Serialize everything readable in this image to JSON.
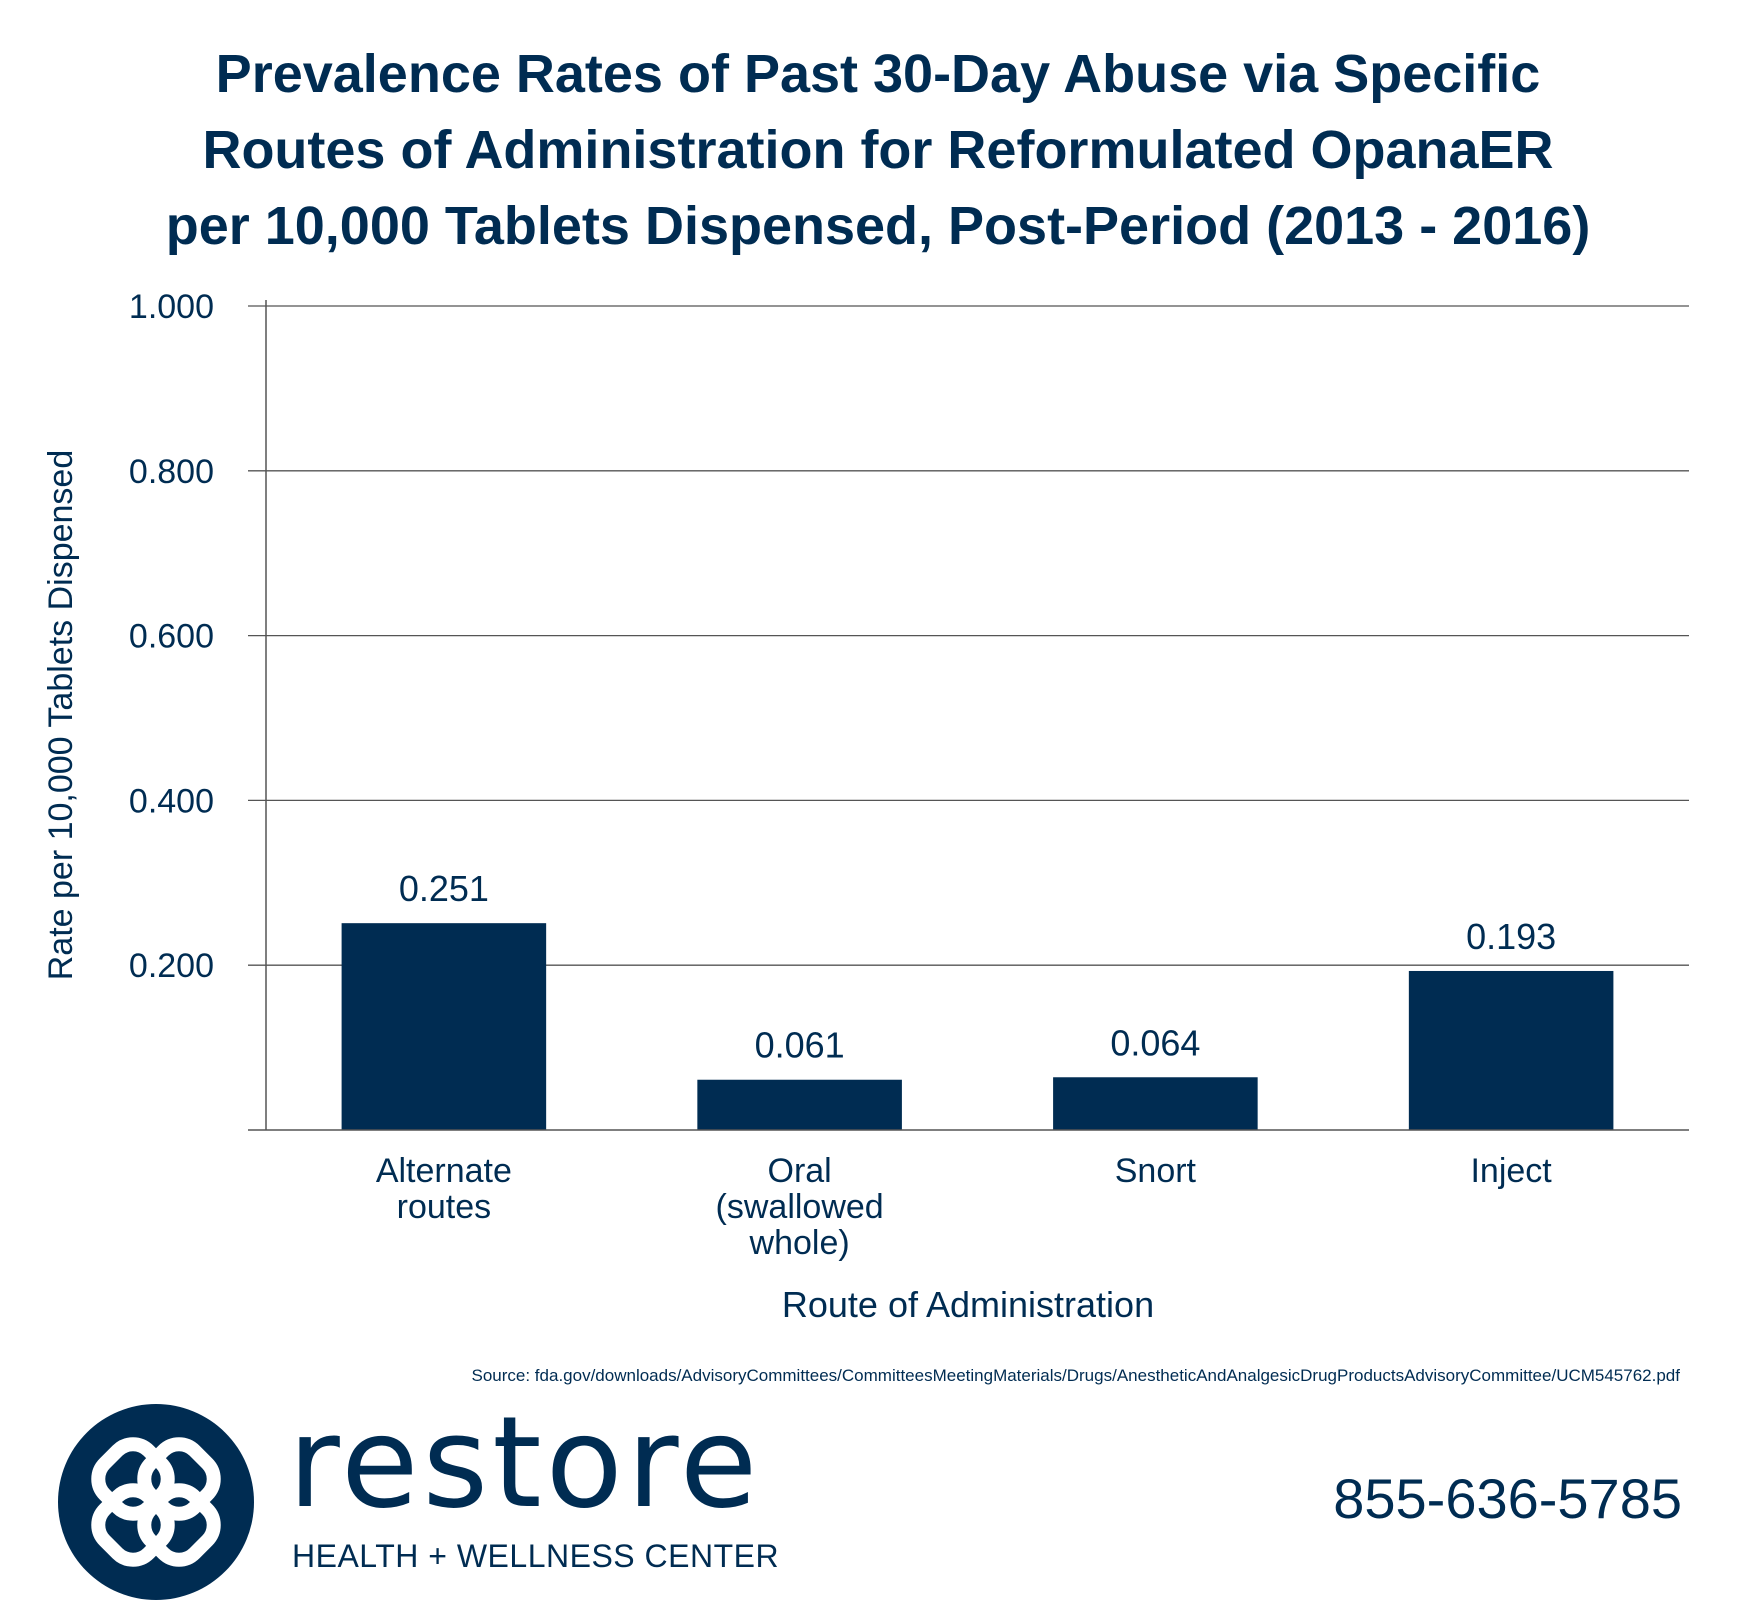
{
  "title_lines": [
    "Prevalence Rates of Past 30-Day Abuse via Specific",
    "Routes of Administration for Reformulated OpanaER",
    "per 10,000 Tablets Dispensed, Post-Period (2013 - 2016)"
  ],
  "chart_data": {
    "type": "bar",
    "title": "Prevalence Rates of Past 30-Day Abuse via Specific Routes of Administration for Reformulated OpanaER per 10,000 Tablets Dispensed, Post-Period (2013 - 2016)",
    "categories": [
      "Alternate routes",
      "Oral (swallowed whole)",
      "Snort",
      "Inject"
    ],
    "category_lines": [
      [
        "Alternate",
        "routes"
      ],
      [
        "Oral",
        "(swallowed",
        "whole)"
      ],
      [
        "Snort"
      ],
      [
        "Inject"
      ]
    ],
    "values": [
      0.251,
      0.061,
      0.064,
      0.193
    ],
    "value_labels": [
      "0.251",
      "0.061",
      "0.064",
      "0.193"
    ],
    "xlabel": "Route of Administration",
    "ylabel": "Rate per 10,000 Tablets Dispensed",
    "ylim": [
      0,
      1
    ],
    "yticks": [
      0.2,
      0.4,
      0.6,
      0.8,
      1.0
    ],
    "ytick_labels": [
      "0.200",
      "0.400",
      "0.600",
      "0.800",
      "1.000"
    ],
    "grid": true,
    "bar_color": "#002c52"
  },
  "source": "Source: fda.gov/downloads/AdvisoryCommittees/CommitteesMeetingMaterials/Drugs/AnestheticAndAnalgesicDrugProductsAdvisoryCommittee/UCM545762.pdf",
  "brand": {
    "name": "restore",
    "subtitle": "HEALTH + WELLNESS CENTER",
    "phone": "855-636-5785",
    "logo_icon": "interlocking-links-icon",
    "color": "#002c52"
  }
}
